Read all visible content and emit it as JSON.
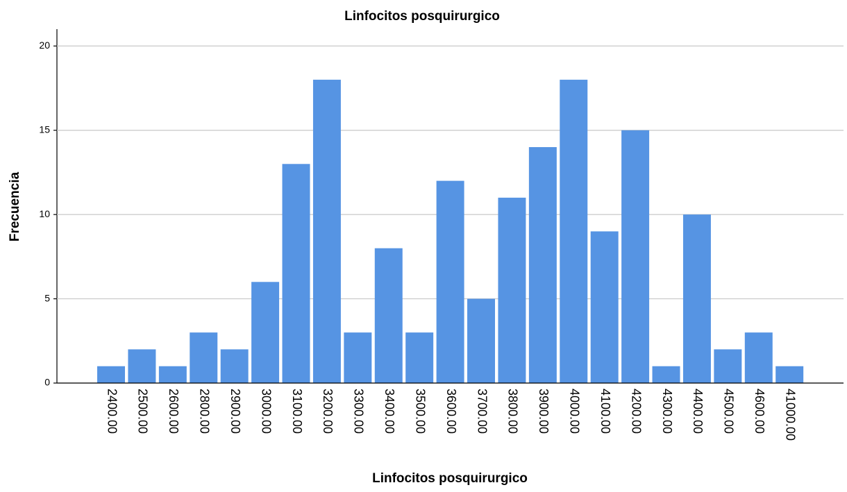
{
  "chart_data": {
    "type": "bar",
    "title": "Linfocitos posquirurgico",
    "x_label": "Linfocitos posquirurgico",
    "y_label": "Frecuencia",
    "categories": [
      "2400.00",
      "2500.00",
      "2600.00",
      "2800.00",
      "2900.00",
      "3000.00",
      "3100.00",
      "3200.00",
      "3300.00",
      "3400.00",
      "3500.00",
      "3600.00",
      "3700.00",
      "3800.00",
      "3900.00",
      "4000.00",
      "4100.00",
      "4200.00",
      "4300.00",
      "4400.00",
      "4500.00",
      "4600.00",
      "41000.00"
    ],
    "values": [
      1,
      2,
      1,
      3,
      2,
      6,
      13,
      18,
      3,
      8,
      3,
      12,
      5,
      11,
      14,
      18,
      9,
      15,
      1,
      10,
      2,
      3,
      1
    ],
    "color": "#5694e3",
    "ylim": [
      0,
      21
    ],
    "yticks": [
      0,
      5,
      10,
      15,
      20
    ],
    "grid": true
  }
}
